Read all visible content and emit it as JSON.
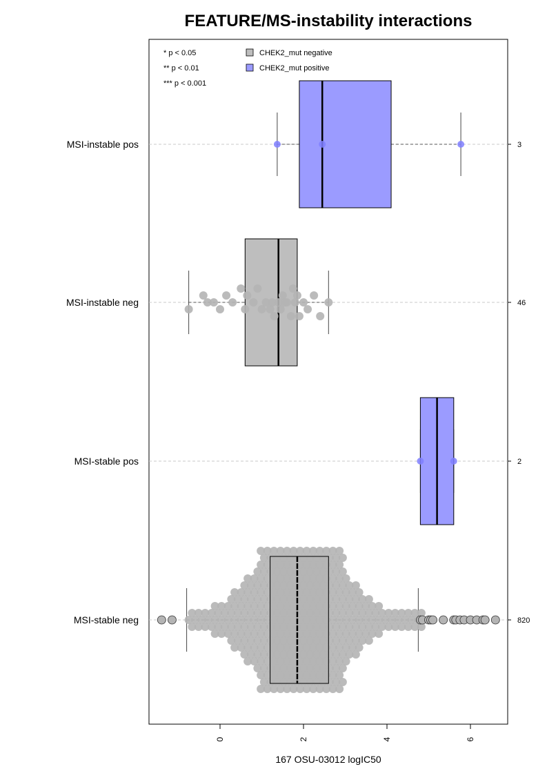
{
  "chart_data": {
    "type": "boxplot",
    "orientation": "horizontal",
    "title": "FEATURE/MS-instability interactions",
    "xlabel": "167 OSU-03012 logIC50",
    "ylabel": "",
    "xlim": [
      -1.7,
      6.9
    ],
    "xticks": [
      0,
      2,
      4,
      6
    ],
    "grid": "horizontal dashed lines at each category",
    "legend_position": "top-left",
    "significance_notes": [
      "* p < 0.05",
      "** p < 0.01",
      "*** p < 0.001"
    ],
    "legend": [
      {
        "label": "CHEK2_mut negative",
        "color": "#bebebe"
      },
      {
        "label": "CHEK2_mut positive",
        "color": "#9b9bff"
      }
    ],
    "categories": [
      "MSI-instable pos",
      "MSI-instable neg",
      "MSI-stable pos",
      "MSI-stable neg"
    ],
    "series": [
      {
        "category": "MSI-instable pos",
        "group": "CHEK2_mut positive",
        "n": "3",
        "whisker_low": 1.37,
        "q1": 1.9,
        "median": 2.45,
        "q3": 4.1,
        "whisker_high": 5.77,
        "points": [
          1.37,
          2.45,
          5.77
        ]
      },
      {
        "category": "MSI-instable neg",
        "group": "CHEK2_mut negative",
        "n": "46",
        "whisker_low": -0.75,
        "q1": 0.6,
        "median": 1.4,
        "q3": 1.85,
        "whisker_high": 2.6,
        "points": [
          -0.75,
          -0.4,
          -0.3,
          -0.15,
          0.0,
          0.15,
          0.3,
          0.5,
          0.6,
          0.65,
          0.8,
          0.9,
          1.0,
          1.1,
          1.2,
          1.25,
          1.3,
          1.4,
          1.45,
          1.5,
          1.55,
          1.6,
          1.7,
          1.75,
          1.8,
          1.85,
          1.9,
          2.0,
          2.1,
          2.25,
          2.4,
          2.6
        ]
      },
      {
        "category": "MSI-stable pos",
        "group": "CHEK2_mut positive",
        "n": "2",
        "whisker_low": 4.8,
        "q1": 4.8,
        "median": 5.2,
        "q3": 5.6,
        "whisker_high": 5.6,
        "points": [
          4.8,
          5.6
        ]
      },
      {
        "category": "MSI-stable neg",
        "group": "CHEK2_mut negative",
        "n": "820",
        "whisker_low": -0.8,
        "q1": 1.2,
        "median": 1.85,
        "q3": 2.6,
        "whisker_high": 4.75,
        "outliers": [
          -1.4,
          -1.15,
          4.8,
          4.85,
          5.0,
          5.05,
          5.1,
          5.35,
          5.6,
          5.65,
          5.75,
          5.85,
          6.0,
          6.15,
          6.3,
          6.35,
          6.6
        ]
      }
    ]
  }
}
